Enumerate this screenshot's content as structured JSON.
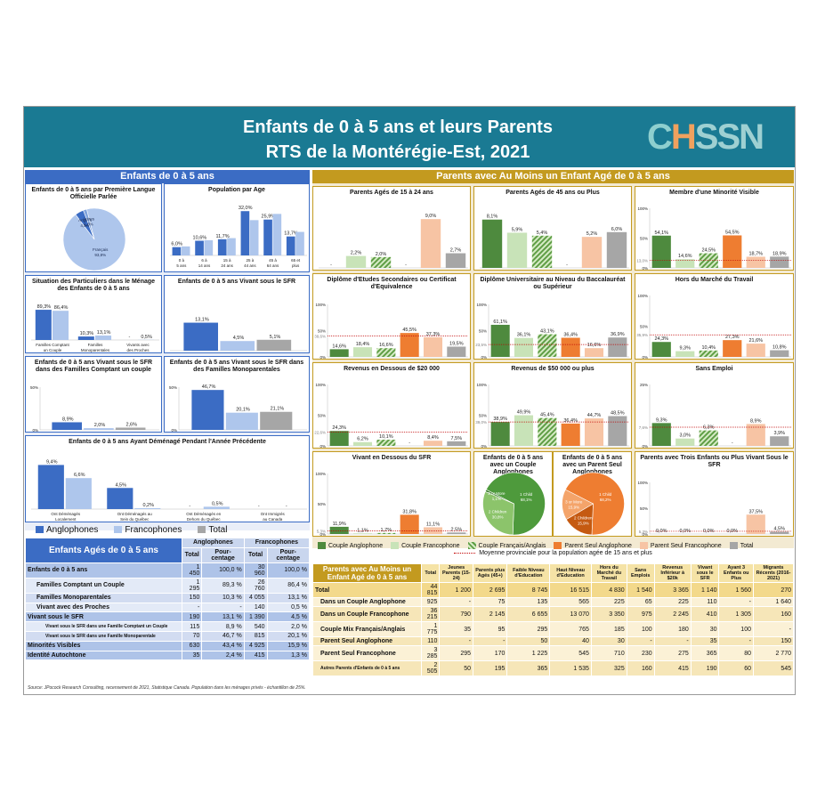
{
  "header": {
    "title_line1": "Enfants de 0 à 5 ans et leurs Parents",
    "title_line2": "RTS de la Montérégie-Est, 2021",
    "logo": "CHSSN"
  },
  "sections": {
    "left": "Enfants de 0 à 5 ans",
    "right": "Parents avec Au Moins un Enfant Agé de 0 à 5 ans"
  },
  "colors": {
    "anglo": "#3b6cc4",
    "franco": "#aec6ec",
    "total": "#a6a6a6",
    "couple_anglo": "#4e8a3e",
    "couple_franco": "#c8e3b8",
    "couple_mix": "#5f9e45",
    "parent_anglo": "#ee7d31",
    "parent_franco": "#f7c4a4",
    "avg_line": "#c00000"
  },
  "legends": {
    "left": [
      "Anglophones",
      "Francophones",
      "Total"
    ],
    "right": [
      "Couple Anglophone",
      "Couple Francophone",
      "Couple Français/Anglais",
      "Parent Seul Anglophone",
      "Parent Seul Francophone",
      "Total"
    ],
    "right_avg": "Moyenne provinciale pour la population agée de 15 ans et plus"
  },
  "chart_data": [
    {
      "id": "langue",
      "type": "pie",
      "title": "Enfants de 0 à 5 ans par Première Langue Officielle Parlée",
      "slices": [
        {
          "label": "Français",
          "pct": "93,8%",
          "value": 93.8
        },
        {
          "label": "Anglais",
          "pct": "4,5%",
          "value": 4.5
        },
        {
          "label": "Autres",
          "pct": "1,8%",
          "value": 1.8
        }
      ]
    },
    {
      "id": "age",
      "type": "bar",
      "title": "Population par Age",
      "categories": [
        "0 à 5 ans",
        "6 à 14 ans",
        "15 à 24 ans",
        "25 à 44 ans",
        "45 à 64 ans",
        "65 et plus"
      ],
      "series": [
        {
          "name": "Anglophones",
          "values": [
            6.0,
            10.6,
            11.7,
            32.0,
            25.9,
            13.7
          ]
        },
        {
          "name": "Francophones",
          "values": [
            6.5,
            11.0,
            12.5,
            25.5,
            30.0,
            17.0
          ]
        }
      ],
      "labels": [
        "6,0%",
        "10,6%",
        "11,7%",
        "32,0%",
        "25,9%",
        "13,7%"
      ],
      "ylim": [
        0,
        36
      ]
    },
    {
      "id": "situation",
      "type": "bar",
      "title": "Situation des Particuliers dans le Ménage des Enfants de 0 à 5 ans",
      "categories": [
        "Familles Comptant un Couple",
        "Familles Monoparentales",
        "Vivants avec des Proches"
      ],
      "series": [
        {
          "name": "Anglophones",
          "values": [
            89.3,
            10.3,
            0
          ]
        },
        {
          "name": "Francophones",
          "values": [
            86.4,
            13.1,
            0.5
          ]
        }
      ],
      "labels": [
        [
          "89,3%",
          "10,3%",
          "-"
        ],
        [
          "86,4%",
          "13,1%",
          "0,5%"
        ]
      ],
      "ylim": [
        0,
        100
      ]
    },
    {
      "id": "sfr",
      "type": "bar",
      "title": "Enfants de 0 à 5 ans Vivant sous le SFR",
      "categories": [
        ""
      ],
      "series": [
        {
          "name": "Anglophones",
          "values": [
            13.1
          ]
        },
        {
          "name": "Francophones",
          "values": [
            4.5
          ]
        },
        {
          "name": "Total",
          "values": [
            5.1
          ]
        }
      ],
      "labels": [
        [
          "13,1%"
        ],
        [
          "4,5%"
        ],
        [
          "5,1%"
        ]
      ],
      "ylim": [
        0,
        25
      ]
    },
    {
      "id": "sfr_couple",
      "type": "bar",
      "title": "Enfants de 0 à 5 ans Vivant sous le SFR dans des Familles Comptant un couple",
      "categories": [
        ""
      ],
      "series": [
        {
          "name": "Anglophones",
          "values": [
            8.9
          ]
        },
        {
          "name": "Francophones",
          "values": [
            2.0
          ]
        },
        {
          "name": "Total",
          "values": [
            2.6
          ]
        }
      ],
      "labels": [
        [
          "8,9%"
        ],
        [
          "2,0%"
        ],
        [
          "2,6%"
        ]
      ],
      "ylim": [
        0,
        50
      ],
      "yticks": [
        "0%",
        "50%"
      ]
    },
    {
      "id": "sfr_mono",
      "type": "bar",
      "title": "Enfants de 0 à 5 ans Vivant sous le SFR dans des Familles Monoparentales",
      "categories": [
        ""
      ],
      "series": [
        {
          "name": "Anglophones",
          "values": [
            46.7
          ]
        },
        {
          "name": "Francophones",
          "values": [
            20.1
          ]
        },
        {
          "name": "Total",
          "values": [
            21.1
          ]
        }
      ],
      "labels": [
        [
          "46,7%"
        ],
        [
          "20,1%"
        ],
        [
          "21,1%"
        ]
      ],
      "ylim": [
        0,
        50
      ],
      "yticks": [
        "0%",
        "50%"
      ]
    },
    {
      "id": "demenage",
      "type": "bar",
      "title": "Enfants de 0 à 5 ans Ayant Déménagé Pendant l'Année Précédente",
      "categories": [
        "Ont Déménagés Localement",
        "Ont Déménagés au Sein du Québec",
        "Ont Déménagés en Dehors du Québec",
        "Ont Immigrés au Canada"
      ],
      "series": [
        {
          "name": "Anglophones",
          "values": [
            9.4,
            4.5,
            0,
            0
          ]
        },
        {
          "name": "Francophones",
          "values": [
            6.6,
            0.2,
            0.5,
            0
          ]
        }
      ],
      "labels": [
        [
          "9,4%",
          "4,5%",
          "-",
          "-"
        ],
        [
          "6,6%",
          "0,2%",
          "0,5%",
          "-"
        ]
      ],
      "ylim": [
        0,
        11
      ]
    },
    {
      "id": "p1524",
      "type": "bar",
      "title": "Parents Agés de 15 à 24 ans",
      "values": [
        0,
        2.2,
        2.0,
        0,
        9.0,
        2.7
      ],
      "labels": [
        "-",
        "2,2%",
        "2,0%",
        "-",
        "9,0%",
        "2,7%"
      ],
      "ylim": [
        0,
        11
      ]
    },
    {
      "id": "p45",
      "type": "bar",
      "title": "Parents Agés de 45 ans ou Plus",
      "values": [
        8.1,
        5.9,
        5.4,
        0,
        5.2,
        6.0
      ],
      "labels": [
        "8,1%",
        "5,9%",
        "5,4%",
        "-",
        "5,2%",
        "6,0%"
      ],
      "ylim": [
        0,
        10
      ]
    },
    {
      "id": "minorite",
      "type": "bar",
      "title": "Membre d'une Minorité Visible",
      "values": [
        54.1,
        14.6,
        24.5,
        54.5,
        18.7,
        18.9
      ],
      "labels": [
        "54,1%",
        "14,6%",
        "24,5%",
        "54,5%",
        "18,7%",
        "18,9%"
      ],
      "ylim": [
        0,
        100
      ],
      "yticks": [
        "0%",
        "50%",
        "100%"
      ],
      "avg": 13.0,
      "avg_label": "13,0%"
    },
    {
      "id": "diplome_sec",
      "type": "bar",
      "title": "Diplôme d'Etudes Secondaires ou Certificat d'Equivalence",
      "values": [
        14.6,
        18.4,
        16.6,
        45.5,
        37.3,
        19.5
      ],
      "labels": [
        "14,6%",
        "18,4%",
        "16,6%",
        "45,5%",
        "37,3%",
        "19,5%"
      ],
      "ylim": [
        0,
        100
      ],
      "yticks": [
        "0%",
        "50%",
        "100%"
      ],
      "avg": 39.6,
      "avg_label": "39,6%"
    },
    {
      "id": "diplome_uni",
      "type": "bar",
      "title": "Diplôme Universitaire au Niveau du Baccalauréat ou Supérieur",
      "values": [
        61.1,
        36.1,
        43.1,
        36.4,
        16.6,
        36.9
      ],
      "labels": [
        "61,1%",
        "36,1%",
        "43,1%",
        "36,4%",
        "16,6%",
        "36,9%"
      ],
      "ylim": [
        0,
        100
      ],
      "yticks": [
        "0%",
        "50%",
        "100%"
      ],
      "avg": 23.5,
      "avg_label": "23,5%"
    },
    {
      "id": "hors_marche",
      "type": "bar",
      "title": "Hors du Marché du Travail",
      "values": [
        24.3,
        9.3,
        10.4,
        27.3,
        21.6,
        10.8
      ],
      "labels": [
        "24,3%",
        "9,3%",
        "10,4%",
        "27,3%",
        "21,6%",
        "10,8%"
      ],
      "ylim": [
        0,
        100
      ],
      "yticks": [
        "0%",
        "50%",
        "100%"
      ],
      "avg": 35.9,
      "avg_label": "35,9%"
    },
    {
      "id": "revenu_20",
      "type": "bar",
      "title": "Revenus en Dessous de $20 000",
      "values": [
        24.3,
        6.2,
        10.1,
        0,
        8.4,
        7.5
      ],
      "labels": [
        "24,3%",
        "6,2%",
        "10,1%",
        "-",
        "8,4%",
        "7,5%"
      ],
      "ylim": [
        0,
        100
      ],
      "yticks": [
        "0%",
        "50%",
        "100%"
      ],
      "avg": 22.6,
      "avg_label": "22,6%"
    },
    {
      "id": "revenu_50",
      "type": "bar",
      "title": "Revenus de $50 000 ou plus",
      "values": [
        38.9,
        49.9,
        45.4,
        36.4,
        44.7,
        48.5
      ],
      "labels": [
        "38,9%",
        "49,9%",
        "45,4%",
        "36,4%",
        "44,7%",
        "48,5%"
      ],
      "ylim": [
        0,
        100
      ],
      "yticks": [
        "0%",
        "50%",
        "100%"
      ],
      "avg": 39.0,
      "avg_label": "39,0%"
    },
    {
      "id": "sans_emploi",
      "type": "bar",
      "title": "Sans Emploi",
      "values": [
        9.3,
        3.0,
        6.3,
        0,
        8.9,
        3.9
      ],
      "labels": [
        "9,3%",
        "3,0%",
        "6,3%",
        "-",
        "8,9%",
        "3,9%"
      ],
      "ylim": [
        0,
        25
      ],
      "yticks": [
        "0%",
        "25%"
      ],
      "avg": 7.6,
      "avg_label": "7,6%"
    },
    {
      "id": "sous_sfr",
      "type": "bar",
      "title": "Vivant en Dessous du SFR",
      "values": [
        11.9,
        1.1,
        1.7,
        31.8,
        11.1,
        2.5
      ],
      "labels": [
        "11,9%",
        "1,1%",
        "1,7%",
        "31,8%",
        "11,1%",
        "2,5%"
      ],
      "ylim": [
        0,
        100
      ],
      "yticks": [
        "0%",
        "50%",
        "100%"
      ],
      "avg": 5.3,
      "avg_label": "5,3%"
    },
    {
      "id": "pie_couple",
      "type": "pie",
      "title": "Enfants de 0 à 5 ans avec un Couple Anglophones",
      "slices": [
        {
          "label": "1 Child",
          "pct": "68,1%",
          "value": 68.1
        },
        {
          "label": "2 Children",
          "pct": "30,8%",
          "value": 30.8
        },
        {
          "label": "3 or More",
          "pct": "1,1%",
          "value": 1.1
        }
      ]
    },
    {
      "id": "pie_parent",
      "type": "pie",
      "title": "Enfants de 0 à 5 ans avec un Parent Seul Anglophones",
      "slices": [
        {
          "label": "1 Child",
          "pct": "68,2%",
          "value": 68.2
        },
        {
          "label": "2 Children",
          "pct": "15,9%",
          "value": 15.9
        },
        {
          "label": "3 or More",
          "pct": "15,9%",
          "value": 15.9
        }
      ]
    },
    {
      "id": "trois_enfants",
      "type": "bar",
      "title": "Parents avec Trois Enfants ou Plus Vivant Sous le SFR",
      "values": [
        0,
        0,
        0,
        0,
        37.5,
        4.5
      ],
      "labels": [
        "0,0%",
        "0,0%",
        "0,0%",
        "0,0%",
        "37,5%",
        "4,5%"
      ],
      "ylim": [
        0,
        100
      ],
      "yticks": [
        "0%",
        "50%",
        "100%"
      ],
      "avg": 5.3,
      "avg_label": "5,3%"
    }
  ],
  "left_table": {
    "title": "Enfants Agés de 0 à 5 ans",
    "groups": [
      "Anglophones",
      "Francophones"
    ],
    "cols": [
      "Total",
      "Pour-centage",
      "Total",
      "Pour-centage"
    ],
    "rows": [
      {
        "label": "Enfants de 0 à 5 ans",
        "cells": [
          "1 450",
          "100,0 %",
          "30 960",
          "100,0 %"
        ],
        "level": 0
      },
      {
        "label": "Familles Comptant un Couple",
        "cells": [
          "1 295",
          "89,3 %",
          "26 760",
          "86,4 %"
        ],
        "level": 1
      },
      {
        "label": "Familles Monoparentales",
        "cells": [
          "150",
          "10,3 %",
          "4 055",
          "13,1 %"
        ],
        "level": 1
      },
      {
        "label": "Vivant avec des Proches",
        "cells": [
          "-",
          "-",
          "140",
          "0,5 %"
        ],
        "level": 1
      },
      {
        "label": "Vivant sous le SFR",
        "cells": [
          "190",
          "13,1 %",
          "1 390",
          "4,5 %"
        ],
        "level": 0
      },
      {
        "label": "Vivant sous le SFR dans une Famille Comptant un Couple",
        "cells": [
          "115",
          "8,9 %",
          "540",
          "2,0 %"
        ],
        "level": 2
      },
      {
        "label": "Vivant sous le SFR dans une Famille Monoparentale",
        "cells": [
          "70",
          "46,7 %",
          "815",
          "20,1 %"
        ],
        "level": 2
      },
      {
        "label": "Minorités Visibles",
        "cells": [
          "630",
          "43,4 %",
          "4 925",
          "15,9 %"
        ],
        "level": 0
      },
      {
        "label": "Identité Autochtone",
        "cells": [
          "35",
          "2,4 %",
          "415",
          "1,3 %"
        ],
        "level": 0
      }
    ]
  },
  "right_table": {
    "title": "Parents avec Au Moins un Enfant Agé de 0 à 5 ans",
    "cols": [
      "Total",
      "Jeunes Parents (15-24)",
      "Parents plus Agés (45+)",
      "Faible Niveau d'Education",
      "Haut Niveau d'Education",
      "Hors du Marché du Travail",
      "Sans Emplois",
      "Revenus Inférieur à $20k",
      "Vivant sous le SFR",
      "Ayant 3 Enfants ou Plus",
      "Migrants Récents (2016-2021)"
    ],
    "rows": [
      {
        "label": "Total",
        "cells": [
          "44 815",
          "1 200",
          "2 695",
          "8 745",
          "16 515",
          "4 830",
          "1 540",
          "3 365",
          "1 140",
          "1 560",
          "270"
        ]
      },
      {
        "label": "Dans un Couple Anglophone",
        "cells": [
          "925",
          "-",
          "75",
          "135",
          "565",
          "225",
          "65",
          "225",
          "110",
          "-",
          "1 640"
        ]
      },
      {
        "label": "Dans un Couple Francophone",
        "cells": [
          "36 215",
          "790",
          "2 145",
          "6 655",
          "13 070",
          "3 350",
          "975",
          "2 245",
          "410",
          "1 305",
          "160"
        ]
      },
      {
        "label": "Couple Mix Français/Anglais",
        "cells": [
          "1 775",
          "35",
          "95",
          "295",
          "765",
          "185",
          "100",
          "180",
          "30",
          "100",
          "-"
        ]
      },
      {
        "label": "Parent Seul Anglophone",
        "cells": [
          "110",
          "-",
          "-",
          "50",
          "40",
          "30",
          "-",
          "-",
          "35",
          "-",
          "150"
        ]
      },
      {
        "label": "Parent Seul Francophone",
        "cells": [
          "3 285",
          "295",
          "170",
          "1 225",
          "545",
          "710",
          "230",
          "275",
          "365",
          "80",
          "2 770"
        ]
      },
      {
        "label": "Autres Parents d'Enfants de 0 à 5 ans",
        "cells": [
          "2 505",
          "50",
          "195",
          "365",
          "1 535",
          "325",
          "160",
          "415",
          "190",
          "60",
          "545"
        ]
      }
    ]
  },
  "source": "Source: JPocock Research Consulting, recensement de 2021, Statistique Canada. Population dans les ménages privés - échantillon de 25%."
}
